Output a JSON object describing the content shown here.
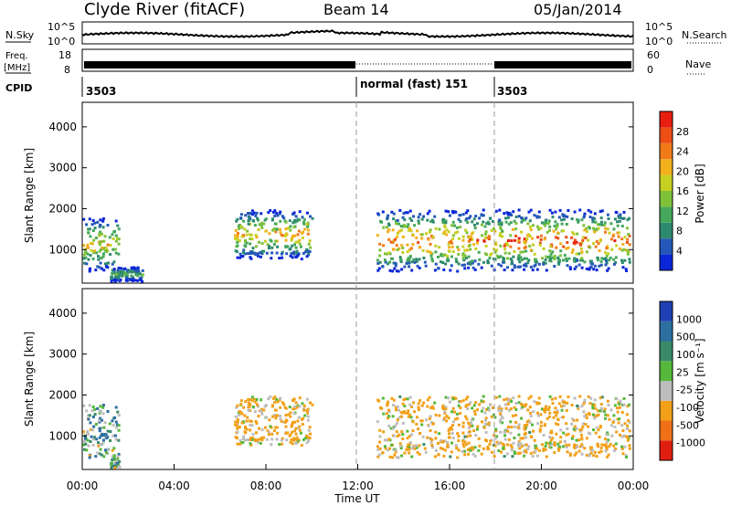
{
  "header": {
    "station": "Clyde River (fitACF)",
    "beam": "Beam 14",
    "date": "05/Jan/2014"
  },
  "top_panels": {
    "nsky": {
      "label": "N.Sky",
      "tick_top": "10^5",
      "tick_bottom": "10^0",
      "right_top": "10^5",
      "right_bottom": "10^0",
      "right_label": "N.Search"
    },
    "freq": {
      "label_line1": "Freq.",
      "label_line2": "[MHz]",
      "tick_top": "18",
      "tick_bottom": "8",
      "right_top": "60",
      "right_bottom": "0",
      "right_label": "Nave"
    },
    "cpid": {
      "label": "CPID",
      "segments": [
        "3503",
        "normal (fast) 151",
        "3503"
      ]
    }
  },
  "axes": {
    "xlabel": "Time UT",
    "x_ticks": [
      "00:00",
      "04:00",
      "08:00",
      "12:00",
      "16:00",
      "20:00",
      "00:00"
    ],
    "ylabel": "Slant Range [km]",
    "y_ticks": [
      "1000",
      "2000",
      "3000",
      "4000"
    ]
  },
  "power_colorbar": {
    "label": "Power [dB]",
    "ticks": [
      "4",
      "8",
      "12",
      "16",
      "20",
      "24",
      "28"
    ],
    "colors": [
      "#0a26d8",
      "#2458b8",
      "#2e8a6e",
      "#45a85a",
      "#7ec23a",
      "#c6d020",
      "#f2b01a",
      "#f07a18",
      "#ec4e16",
      "#e81e10"
    ]
  },
  "velocity_colorbar": {
    "label": "Velocity [m s⁻¹]",
    "ticks": [
      "1000",
      "500",
      "100",
      "25",
      "-25",
      "-100",
      "-500",
      "-1000"
    ],
    "colors": [
      "#1f3fb4",
      "#2c6fa0",
      "#3a8a6a",
      "#55b83a",
      "#bdbdbd",
      "#f2a018",
      "#f07018",
      "#e01e10"
    ]
  },
  "chart_data": [
    {
      "type": "heatmap",
      "title": "Power [dB]",
      "xlabel": "Time UT",
      "ylabel": "Slant Range [km]",
      "x_range_hours": [
        0,
        24
      ],
      "ylim": [
        180,
        4600
      ],
      "colorbar_range": [
        0,
        32
      ],
      "echo_regions": [
        {
          "t_start": 0.0,
          "t_end": 1.6,
          "range_min": 500,
          "range_max": 1800,
          "power_peak": 24
        },
        {
          "t_start": 1.2,
          "t_end": 2.6,
          "range_min": 250,
          "range_max": 600,
          "power_peak": 14
        },
        {
          "t_start": 6.6,
          "t_end": 10.0,
          "range_min": 800,
          "range_max": 2000,
          "power_peak": 26
        },
        {
          "t_start": 12.8,
          "t_end": 23.8,
          "range_min": 500,
          "range_max": 2000,
          "power_peak": 30
        }
      ]
    },
    {
      "type": "heatmap",
      "title": "Velocity [m s-1]",
      "xlabel": "Time UT",
      "ylabel": "Slant Range [km]",
      "x_range_hours": [
        0,
        24
      ],
      "ylim": [
        180,
        4600
      ],
      "colorbar_range": [
        -1000,
        1000
      ],
      "echo_regions": [
        {
          "t_start": 0.0,
          "t_end": 1.6,
          "range_min": 500,
          "range_max": 1800,
          "velocity": 40
        },
        {
          "t_start": 6.6,
          "t_end": 10.0,
          "range_min": 800,
          "range_max": 2000,
          "velocity": -150
        },
        {
          "t_start": 12.8,
          "t_end": 23.8,
          "range_min": 500,
          "range_max": 2000,
          "velocity": -120
        }
      ]
    }
  ]
}
